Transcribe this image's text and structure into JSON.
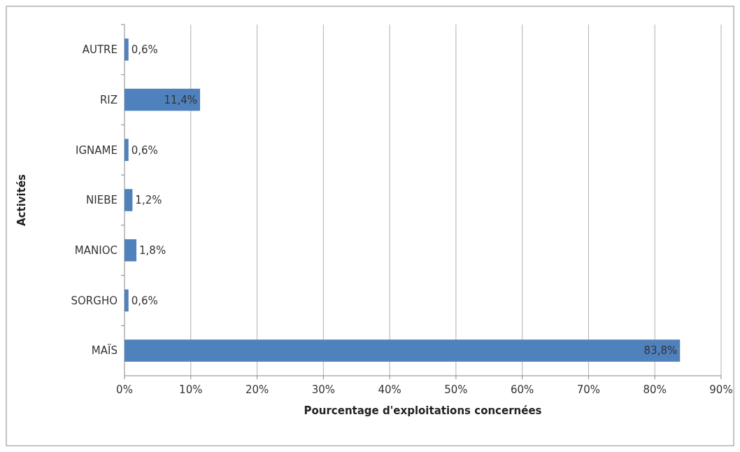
{
  "chart_data": {
    "type": "bar",
    "orientation": "horizontal",
    "xlabel": "Pourcentage d'exploitations concernées",
    "ylabel": "Activités",
    "categories": [
      "AUTRE",
      "RIZ",
      "IGNAME",
      "NIEBE",
      "MANIOC",
      "SORGHO",
      "MAÏS"
    ],
    "values": [
      0.6,
      11.4,
      0.6,
      1.2,
      1.8,
      0.6,
      83.8
    ],
    "value_labels": [
      "0,6%",
      "11,4%",
      "0,6%",
      "1,2%",
      "1,8%",
      "0,6%",
      "83,8%"
    ],
    "color": "#4f81bd",
    "xlim": [
      0,
      90
    ],
    "xticks": [
      {
        "value": 0,
        "label": "0%"
      },
      {
        "value": 10,
        "label": "10%"
      },
      {
        "value": 20,
        "label": "20%"
      },
      {
        "value": 30,
        "label": "30%"
      },
      {
        "value": 40,
        "label": "40%"
      },
      {
        "value": 50,
        "label": "50%"
      },
      {
        "value": 60,
        "label": "60%"
      },
      {
        "value": 70,
        "label": "70%"
      },
      {
        "value": 80,
        "label": "80%"
      },
      {
        "value": 90,
        "label": "90%"
      }
    ],
    "grid": "x"
  }
}
